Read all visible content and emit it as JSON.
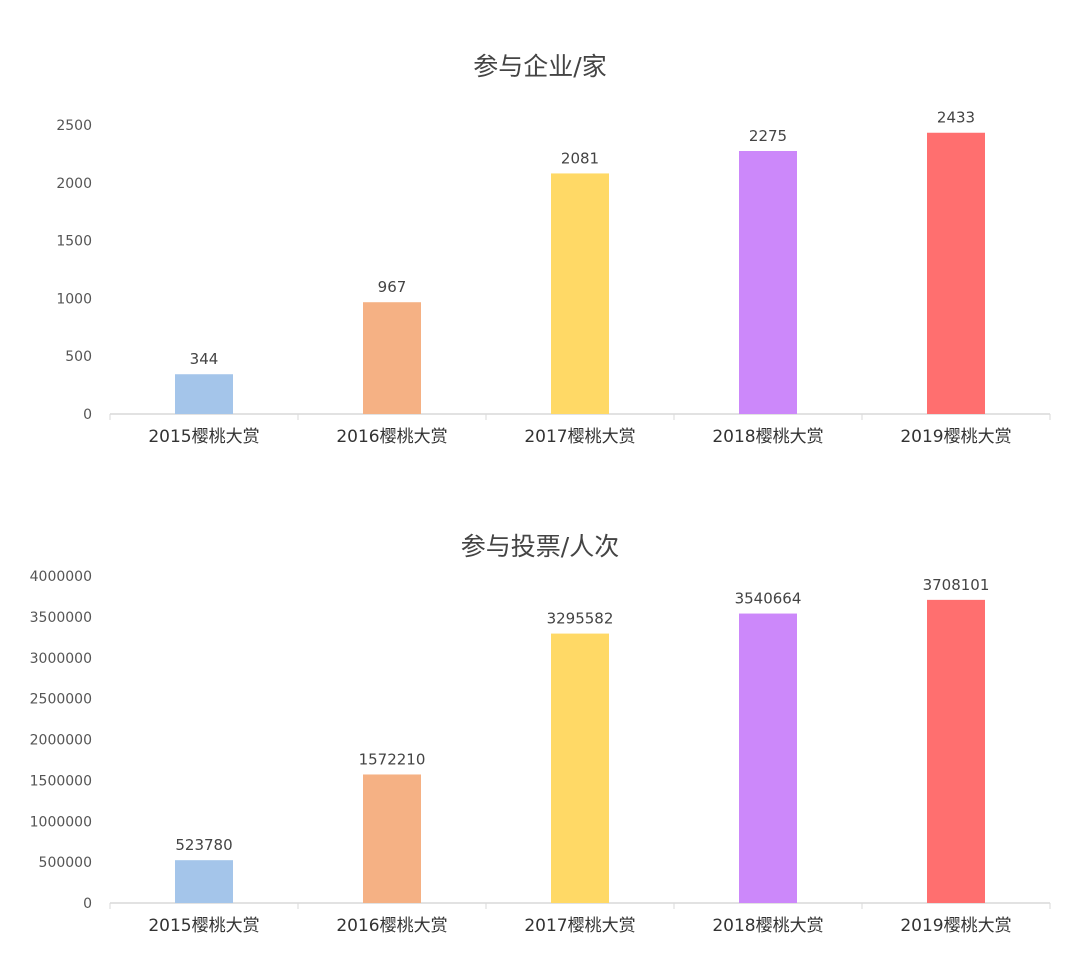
{
  "chart_data": [
    {
      "type": "bar",
      "title": "参与企业/家",
      "categories": [
        "2015樱桃大赏",
        "2016樱桃大赏",
        "2017樱桃大赏",
        "2018樱桃大赏",
        "2019樱桃大赏"
      ],
      "values": [
        344,
        967,
        2081,
        2275,
        2433
      ],
      "data_labels": [
        "344",
        "967",
        "2081",
        "2275",
        "2433"
      ],
      "colors": [
        "#a4c5ea",
        "#f5b184",
        "#ffd966",
        "#cc88fa",
        "#ff6f6f"
      ],
      "yticks": [
        "0",
        "500",
        "1000",
        "1500",
        "2000",
        "2500"
      ],
      "ylim": [
        0,
        2500
      ],
      "xlabel": "",
      "ylabel": "",
      "grid": false
    },
    {
      "type": "bar",
      "title": "参与投票/人次",
      "categories": [
        "2015樱桃大赏",
        "2016樱桃大赏",
        "2017樱桃大赏",
        "2018樱桃大赏",
        "2019樱桃大赏"
      ],
      "values": [
        523780,
        1572210,
        3295582,
        3540664,
        3708101
      ],
      "data_labels": [
        "523780",
        "1572210",
        "3295582",
        "3540664",
        "3708101"
      ],
      "colors": [
        "#a4c5ea",
        "#f5b184",
        "#ffd966",
        "#cc88fa",
        "#ff6f6f"
      ],
      "yticks": [
        "0",
        "500000",
        "1000000",
        "1500000",
        "2000000",
        "2500000",
        "3000000",
        "3500000",
        "4000000"
      ],
      "ylim": [
        0,
        4000000
      ],
      "xlabel": "",
      "ylabel": "",
      "grid": false
    }
  ]
}
